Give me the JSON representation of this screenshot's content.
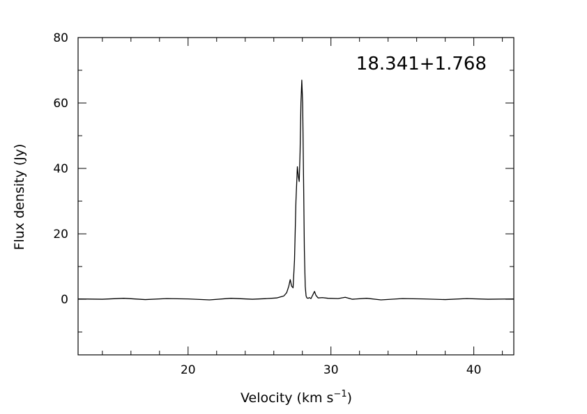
{
  "chart_data": {
    "type": "line",
    "xlabel_main": "Velocity (km s",
    "xlabel_exp": "−1",
    "xlabel_close": ")",
    "ylabel": "Flux density (Jy)",
    "annotation": "18.341+1.768",
    "xlim": [
      12.3,
      42.8
    ],
    "ylim": [
      -17,
      80
    ],
    "x_ticks": [
      20,
      30,
      40
    ],
    "x_minor_step": 2,
    "y_ticks": [
      0,
      20,
      40,
      60,
      80
    ],
    "y_minor_step": 10,
    "grid": false,
    "legend": "none",
    "line_color": "#000000",
    "series": [
      {
        "x": [
          12.3,
          14.0,
          15.5,
          17.0,
          18.5,
          20.0,
          21.5,
          23.0,
          24.5,
          25.5,
          26.2,
          26.7,
          26.9,
          27.05,
          27.15,
          27.25,
          27.35,
          27.45,
          27.55,
          27.65,
          27.72,
          27.78,
          27.84,
          27.9,
          27.96,
          28.02,
          28.08,
          28.14,
          28.2,
          28.26,
          28.32,
          28.4,
          28.5,
          28.6,
          28.75,
          28.85,
          28.95,
          29.1,
          29.4,
          29.8,
          30.5,
          31.0,
          31.5,
          32.5,
          33.5,
          35.0,
          36.5,
          38.0,
          39.5,
          41.0,
          42.8
        ],
        "y": [
          0.1,
          0.0,
          0.3,
          -0.1,
          0.2,
          0.1,
          -0.2,
          0.3,
          0.0,
          0.2,
          0.4,
          1.0,
          2.0,
          4.0,
          6.0,
          4.0,
          3.5,
          12.0,
          30.0,
          40.5,
          37.5,
          36.0,
          45.0,
          60.0,
          67.0,
          60.0,
          38.0,
          15.0,
          4.0,
          1.0,
          0.4,
          0.3,
          0.5,
          0.2,
          1.5,
          2.4,
          1.2,
          0.4,
          0.5,
          0.3,
          0.2,
          0.6,
          0.0,
          0.3,
          -0.2,
          0.2,
          0.1,
          -0.1,
          0.2,
          0.0,
          0.1
        ]
      }
    ]
  }
}
